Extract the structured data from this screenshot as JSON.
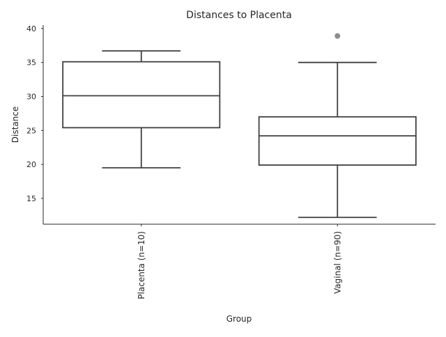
{
  "chart_data": {
    "type": "box",
    "title": "Distances to Placenta",
    "xlabel": "Group",
    "ylabel": "Distance",
    "ylim": [
      11.2,
      40.5
    ],
    "yticks": [
      15,
      20,
      25,
      30,
      35,
      40
    ],
    "grid": false,
    "legend": "none",
    "categories": [
      "Placenta (n=10)",
      "Vaginal (n=90)"
    ],
    "boxes": [
      {
        "category": "Placenta (n=10)",
        "whisker_low": 19.5,
        "q1": 25.4,
        "median": 30.1,
        "q3": 35.1,
        "whisker_high": 36.7,
        "outliers": []
      },
      {
        "category": "Vaginal (n=90)",
        "whisker_low": 12.2,
        "q1": 19.9,
        "median": 24.2,
        "q3": 27.0,
        "whisker_high": 35.0,
        "outliers": [
          38.9
        ]
      }
    ],
    "colors": {
      "box_line": "#3f3f3f",
      "box_fill": "#ffffff",
      "axis": "#262626",
      "outlier": "#8c8c8c"
    }
  }
}
